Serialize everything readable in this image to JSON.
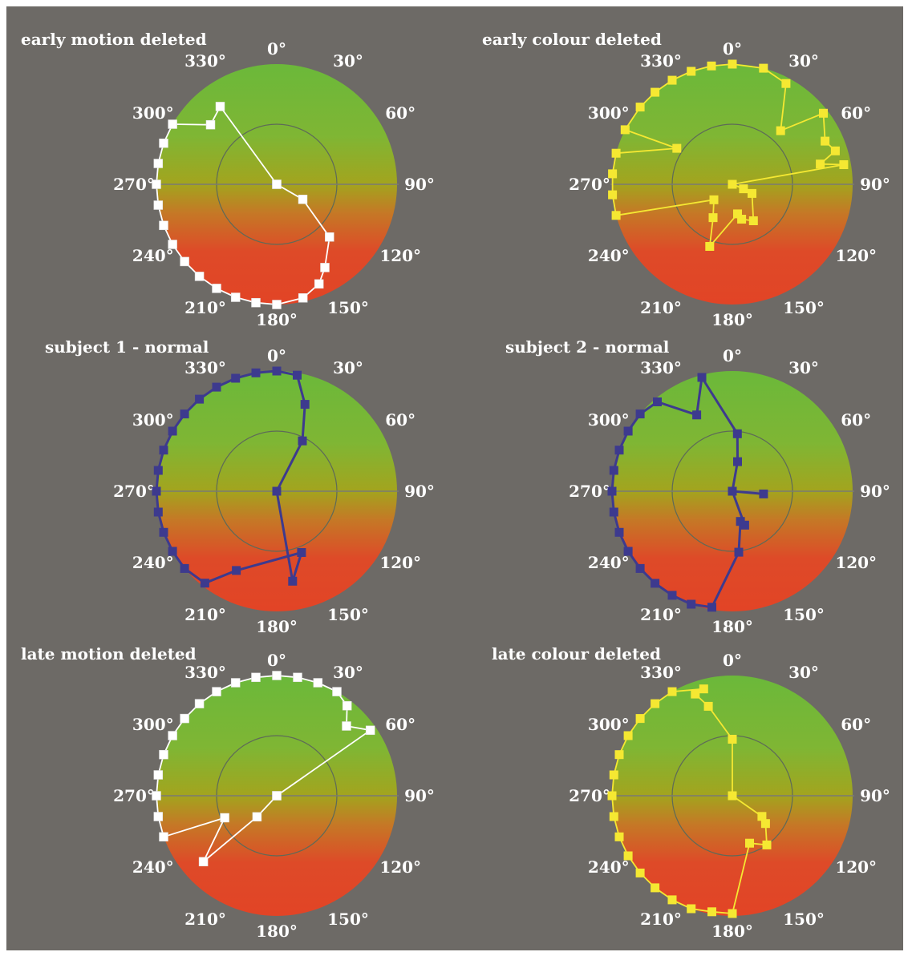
{
  "colors": {
    "background": "#6d6a66",
    "wheel_green": "#64b43c",
    "wheel_olive": "#a8a020",
    "wheel_red": "#e0462a",
    "white_series": "#ffffff",
    "yellow_series": "#f5e832",
    "blue_series": "#3d3a8e"
  },
  "chart_data": [
    {
      "type": "polar-line",
      "title": "early motion deleted",
      "angle_unit": "degrees",
      "tick_labels": [
        "0°",
        "30°",
        "60°",
        "90°",
        "120°",
        "150°",
        "180°",
        "210°",
        "240°",
        "270°",
        "300°",
        "330°"
      ],
      "inner_circle": 0.5,
      "series": [
        {
          "color": "white",
          "points": [
            {
              "angle": 0,
              "r": 0.0
            },
            {
              "angle": 120,
              "r": 0.25
            },
            {
              "angle": 135,
              "r": 0.62
            },
            {
              "angle": 150,
              "r": 0.8
            },
            {
              "angle": 157,
              "r": 0.9
            },
            {
              "angle": 167,
              "r": 0.97
            },
            {
              "angle": 180,
              "r": 1.0
            },
            {
              "angle": 190,
              "r": 1.0
            },
            {
              "angle": 200,
              "r": 1.0
            },
            {
              "angle": 210,
              "r": 1.0
            },
            {
              "angle": 220,
              "r": 1.0
            },
            {
              "angle": 230,
              "r": 1.0
            },
            {
              "angle": 240,
              "r": 1.0
            },
            {
              "angle": 250,
              "r": 1.0
            },
            {
              "angle": 260,
              "r": 1.0
            },
            {
              "angle": 270,
              "r": 1.0
            },
            {
              "angle": 280,
              "r": 1.0
            },
            {
              "angle": 290,
              "r": 1.0
            },
            {
              "angle": 300,
              "r": 1.0
            },
            {
              "angle": 312,
              "r": 0.74
            },
            {
              "angle": 324,
              "r": 0.8
            },
            {
              "angle": 0,
              "r": 0.0
            }
          ]
        }
      ]
    },
    {
      "type": "polar-line",
      "title": "early colour deleted",
      "angle_unit": "degrees",
      "tick_labels": [
        "0°",
        "30°",
        "60°",
        "90°",
        "120°",
        "150°",
        "180°",
        "210°",
        "240°",
        "270°",
        "300°",
        "330°"
      ],
      "inner_circle": 0.5,
      "series": [
        {
          "color": "yellow",
          "points": [
            {
              "angle": 0,
              "r": 1.0
            },
            {
              "angle": 15,
              "r": 1.0
            },
            {
              "angle": 28,
              "r": 0.95
            },
            {
              "angle": 42,
              "r": 0.6
            },
            {
              "angle": 52,
              "r": 0.96
            },
            {
              "angle": 65,
              "r": 0.85
            },
            {
              "angle": 72,
              "r": 0.9
            },
            {
              "angle": 77,
              "r": 0.75
            },
            {
              "angle": 80,
              "r": 0.94
            },
            {
              "angle": 90,
              "r": 0.0
            },
            {
              "angle": 112,
              "r": 0.1
            },
            {
              "angle": 115,
              "r": 0.18
            },
            {
              "angle": 150,
              "r": 0.35
            },
            {
              "angle": 165,
              "r": 0.3
            },
            {
              "angle": 170,
              "r": 0.25
            },
            {
              "angle": 200,
              "r": 0.55
            },
            {
              "angle": 210,
              "r": 0.32
            },
            {
              "angle": 230,
              "r": 0.2
            },
            {
              "angle": 255,
              "r": 1.0
            },
            {
              "angle": 265,
              "r": 1.0
            },
            {
              "angle": 275,
              "r": 1.0
            },
            {
              "angle": 285,
              "r": 1.0
            },
            {
              "angle": 303,
              "r": 0.55
            },
            {
              "angle": 297,
              "r": 1.0
            },
            {
              "angle": 310,
              "r": 1.0
            },
            {
              "angle": 320,
              "r": 1.0
            },
            {
              "angle": 330,
              "r": 1.0
            },
            {
              "angle": 340,
              "r": 1.0
            },
            {
              "angle": 350,
              "r": 1.0
            },
            {
              "angle": 0,
              "r": 1.0
            }
          ]
        }
      ]
    },
    {
      "type": "polar-line",
      "title": "subject 1 - normal",
      "angle_unit": "degrees",
      "tick_labels": [
        "0°",
        "30°",
        "60°",
        "90°",
        "120°",
        "150°",
        "180°",
        "210°",
        "240°",
        "270°",
        "300°",
        "330°"
      ],
      "inner_circle": 0.5,
      "series": [
        {
          "color": "blue",
          "points": [
            {
              "angle": 0,
              "r": 1.0
            },
            {
              "angle": 10,
              "r": 0.98
            },
            {
              "angle": 18,
              "r": 0.76
            },
            {
              "angle": 27,
              "r": 0.47
            },
            {
              "angle": 90,
              "r": 0.0
            },
            {
              "angle": 170,
              "r": 0.76
            },
            {
              "angle": 158,
              "r": 0.55
            },
            {
              "angle": 207,
              "r": 0.74
            },
            {
              "angle": 218,
              "r": 0.97
            },
            {
              "angle": 230,
              "r": 1.0
            },
            {
              "angle": 240,
              "r": 1.0
            },
            {
              "angle": 250,
              "r": 1.0
            },
            {
              "angle": 260,
              "r": 1.0
            },
            {
              "angle": 270,
              "r": 1.0
            },
            {
              "angle": 280,
              "r": 1.0
            },
            {
              "angle": 290,
              "r": 1.0
            },
            {
              "angle": 300,
              "r": 1.0
            },
            {
              "angle": 310,
              "r": 1.0
            },
            {
              "angle": 320,
              "r": 1.0
            },
            {
              "angle": 330,
              "r": 1.0
            },
            {
              "angle": 340,
              "r": 1.0
            },
            {
              "angle": 350,
              "r": 1.0
            },
            {
              "angle": 0,
              "r": 1.0
            }
          ]
        }
      ]
    },
    {
      "type": "polar-line",
      "title": "subject 2 - normal",
      "angle_unit": "degrees",
      "tick_labels": [
        "0°",
        "30°",
        "60°",
        "90°",
        "120°",
        "150°",
        "180°",
        "210°",
        "240°",
        "270°",
        "300°",
        "330°"
      ],
      "inner_circle": 0.5,
      "series": [
        {
          "color": "blue",
          "points": [
            {
              "angle": 345,
              "r": 0.98
            },
            {
              "angle": 335,
              "r": 0.7
            },
            {
              "angle": 320,
              "r": 0.97
            },
            {
              "angle": 310,
              "r": 1.0
            },
            {
              "angle": 300,
              "r": 1.0
            },
            {
              "angle": 290,
              "r": 1.0
            },
            {
              "angle": 280,
              "r": 1.0
            },
            {
              "angle": 270,
              "r": 1.0
            },
            {
              "angle": 260,
              "r": 1.0
            },
            {
              "angle": 250,
              "r": 1.0
            },
            {
              "angle": 240,
              "r": 1.0
            },
            {
              "angle": 230,
              "r": 1.0
            },
            {
              "angle": 220,
              "r": 1.0
            },
            {
              "angle": 210,
              "r": 1.0
            },
            {
              "angle": 200,
              "r": 1.0
            },
            {
              "angle": 190,
              "r": 0.98
            },
            {
              "angle": 174,
              "r": 0.51
            },
            {
              "angle": 165,
              "r": 0.26
            },
            {
              "angle": 160,
              "r": 0.3
            },
            {
              "angle": 120,
              "r": 0.0
            },
            {
              "angle": 95,
              "r": 0.26
            },
            {
              "angle": 120,
              "r": 0.0
            },
            {
              "angle": 10,
              "r": 0.25
            },
            {
              "angle": 5,
              "r": 0.48
            },
            {
              "angle": 345,
              "r": 0.98
            }
          ]
        }
      ]
    },
    {
      "type": "polar-line",
      "title": "late motion deleted",
      "angle_unit": "degrees",
      "tick_labels": [
        "0°",
        "30°",
        "60°",
        "90°",
        "120°",
        "150°",
        "180°",
        "210°",
        "240°",
        "270°",
        "300°",
        "330°"
      ],
      "inner_circle": 0.5,
      "series": [
        {
          "color": "white",
          "points": [
            {
              "angle": 0,
              "r": 0.0
            },
            {
              "angle": 55,
              "r": 0.95
            },
            {
              "angle": 45,
              "r": 0.82
            },
            {
              "angle": 38,
              "r": 0.95
            },
            {
              "angle": 30,
              "r": 1.0
            },
            {
              "angle": 20,
              "r": 1.0
            },
            {
              "angle": 10,
              "r": 1.0
            },
            {
              "angle": 0,
              "r": 1.0
            },
            {
              "angle": 350,
              "r": 1.0
            },
            {
              "angle": 340,
              "r": 1.0
            },
            {
              "angle": 330,
              "r": 1.0
            },
            {
              "angle": 320,
              "r": 1.0
            },
            {
              "angle": 310,
              "r": 1.0
            },
            {
              "angle": 300,
              "r": 1.0
            },
            {
              "angle": 290,
              "r": 1.0
            },
            {
              "angle": 280,
              "r": 1.0
            },
            {
              "angle": 270,
              "r": 1.0
            },
            {
              "angle": 260,
              "r": 1.0
            },
            {
              "angle": 250,
              "r": 1.0
            },
            {
              "angle": 247,
              "r": 0.47
            },
            {
              "angle": 228,
              "r": 0.82
            },
            {
              "angle": 223,
              "r": 0.24
            },
            {
              "angle": 0,
              "r": 0.0
            }
          ]
        }
      ]
    },
    {
      "type": "polar-line",
      "title": "late colour deleted",
      "angle_unit": "degrees",
      "tick_labels": [
        "0°",
        "30°",
        "60°",
        "90°",
        "120°",
        "150°",
        "180°",
        "210°",
        "240°",
        "270°",
        "300°",
        "330°"
      ],
      "inner_circle": 0.5,
      "series": [
        {
          "color": "yellow",
          "points": [
            {
              "angle": 0,
              "r": 0.0
            },
            {
              "angle": 0,
              "r": 0.47
            },
            {
              "angle": 345,
              "r": 0.77
            },
            {
              "angle": 340,
              "r": 0.9
            },
            {
              "angle": 345,
              "r": 0.92
            },
            {
              "angle": 330,
              "r": 1.0
            },
            {
              "angle": 320,
              "r": 1.0
            },
            {
              "angle": 310,
              "r": 1.0
            },
            {
              "angle": 300,
              "r": 1.0
            },
            {
              "angle": 290,
              "r": 1.0
            },
            {
              "angle": 280,
              "r": 1.0
            },
            {
              "angle": 270,
              "r": 1.0
            },
            {
              "angle": 260,
              "r": 1.0
            },
            {
              "angle": 250,
              "r": 1.0
            },
            {
              "angle": 240,
              "r": 1.0
            },
            {
              "angle": 230,
              "r": 1.0
            },
            {
              "angle": 220,
              "r": 1.0
            },
            {
              "angle": 210,
              "r": 1.0
            },
            {
              "angle": 200,
              "r": 1.0
            },
            {
              "angle": 190,
              "r": 0.98
            },
            {
              "angle": 180,
              "r": 0.98
            },
            {
              "angle": 160,
              "r": 0.42
            },
            {
              "angle": 145,
              "r": 0.5
            },
            {
              "angle": 130,
              "r": 0.36
            },
            {
              "angle": 125,
              "r": 0.3
            },
            {
              "angle": 0,
              "r": 0.0
            }
          ]
        }
      ]
    }
  ]
}
